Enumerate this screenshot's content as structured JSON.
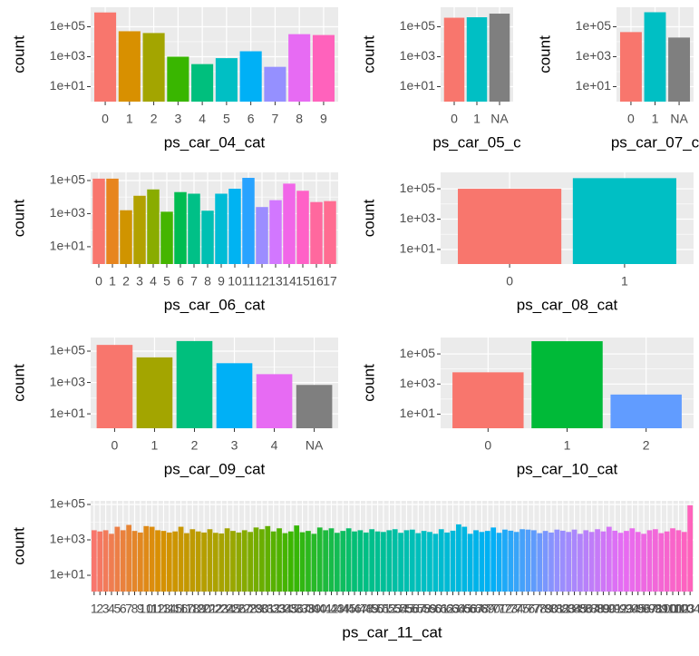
{
  "chart_data": [
    {
      "type": "bar",
      "xlabel": "ps_car_04_cat",
      "ylabel": "count",
      "log_y": true,
      "grid": true,
      "categories": [
        "0",
        "1",
        "2",
        "3",
        "4",
        "5",
        "6",
        "7",
        "8",
        "9"
      ],
      "values": [
        900000,
        50000,
        38000,
        1000,
        320,
        800,
        2300,
        210,
        32000,
        28000
      ],
      "colors": [
        "#F8766D",
        "#D89000",
        "#A3A500",
        "#39B600",
        "#00BF7D",
        "#00BFC4",
        "#00B0F6",
        "#9590FF",
        "#E76BF3",
        "#FF62BC"
      ],
      "ylim": [
        1,
        2000000
      ],
      "yticks": [
        {
          "value": 10,
          "label": "1e+01"
        },
        {
          "value": 1000,
          "label": "1e+03"
        },
        {
          "value": 100000,
          "label": "1e+05"
        }
      ]
    },
    {
      "type": "bar",
      "xlabel": "ps_car_05_c",
      "ylabel": "count",
      "log_y": true,
      "grid": true,
      "categories": [
        "0",
        "1",
        "NA"
      ],
      "values": [
        400000,
        430000,
        750000
      ],
      "colors": [
        "#F8766D",
        "#00BFC4",
        "#7F7F7F"
      ],
      "ylim": [
        1,
        2000000
      ],
      "yticks": [
        {
          "value": 10,
          "label": "1e+01"
        },
        {
          "value": 1000,
          "label": "1e+03"
        },
        {
          "value": 100000,
          "label": "1e+05"
        }
      ]
    },
    {
      "type": "bar",
      "xlabel": "ps_car_07_c",
      "ylabel": "count",
      "log_y": true,
      "grid": true,
      "categories": [
        "0",
        "1",
        "NA"
      ],
      "values": [
        44000,
        930000,
        19000
      ],
      "colors": [
        "#F8766D",
        "#00BFC4",
        "#7F7F7F"
      ],
      "ylim": [
        1,
        2000000
      ],
      "yticks": [
        {
          "value": 10,
          "label": "1e+01"
        },
        {
          "value": 1000,
          "label": "1e+03"
        },
        {
          "value": 100000,
          "label": "1e+05"
        }
      ]
    },
    {
      "type": "bar",
      "xlabel": "ps_car_06_cat",
      "ylabel": "count",
      "log_y": true,
      "grid": true,
      "categories": [
        "0",
        "1",
        "2",
        "3",
        "4",
        "5",
        "6",
        "7",
        "8",
        "9",
        "10",
        "11",
        "12",
        "13",
        "14",
        "15",
        "16",
        "17"
      ],
      "values": [
        130000,
        130000,
        1600,
        12000,
        29000,
        1300,
        20000,
        16000,
        1500,
        16000,
        32000,
        145000,
        2500,
        6500,
        65000,
        24000,
        5000,
        5700
      ],
      "colors": [
        "#F8766D",
        "#E7851E",
        "#D09400",
        "#B2A100",
        "#89AC00",
        "#45B500",
        "#00BC51",
        "#00C087",
        "#00C0B2",
        "#00BCD6",
        "#00B3F2",
        "#29A3FF",
        "#9C8DFF",
        "#D277FF",
        "#F166E8",
        "#FF61C7",
        "#FF689E",
        "#FF6C91"
      ],
      "ylim": [
        0.9,
        310000
      ],
      "yticks": [
        {
          "value": 10,
          "label": "1e+01"
        },
        {
          "value": 1000,
          "label": "1e+03"
        },
        {
          "value": 100000,
          "label": "1e+05"
        }
      ]
    },
    {
      "type": "bar",
      "xlabel": "ps_car_08_cat",
      "ylabel": "count",
      "log_y": true,
      "grid": true,
      "categories": [
        "0",
        "1"
      ],
      "values": [
        100000,
        500000
      ],
      "colors": [
        "#F8766D",
        "#00BFC4"
      ],
      "ylim": [
        1.1,
        1200000
      ],
      "yticks": [
        {
          "value": 10,
          "label": "1e+01"
        },
        {
          "value": 1000,
          "label": "1e+03"
        },
        {
          "value": 100000,
          "label": "1e+05"
        }
      ]
    },
    {
      "type": "bar",
      "xlabel": "ps_car_09_cat",
      "ylabel": "count",
      "log_y": true,
      "grid": true,
      "categories": [
        "0",
        "1",
        "2",
        "3",
        "4",
        "NA"
      ],
      "values": [
        250000,
        40000,
        440000,
        17000,
        3400,
        700
      ],
      "colors": [
        "#F8766D",
        "#A3A500",
        "#00BF7D",
        "#00B0F6",
        "#E76BF3",
        "#7F7F7F"
      ],
      "ylim": [
        1.2,
        740000
      ],
      "yticks": [
        {
          "value": 10,
          "label": "1e+01"
        },
        {
          "value": 1000,
          "label": "1e+03"
        },
        {
          "value": 100000,
          "label": "1e+05"
        }
      ]
    },
    {
      "type": "bar",
      "xlabel": "ps_car_10_cat",
      "ylabel": "count",
      "log_y": true,
      "grid": true,
      "categories": [
        "0",
        "1",
        "2"
      ],
      "values": [
        6000,
        700000,
        200
      ],
      "colors": [
        "#F8766D",
        "#00BA38",
        "#619CFF"
      ],
      "ylim": [
        1.15,
        1230000
      ],
      "yticks": [
        {
          "value": 10,
          "label": "1e+01"
        },
        {
          "value": 1000,
          "label": "1e+03"
        },
        {
          "value": 100000,
          "label": "1e+05"
        }
      ]
    },
    {
      "type": "bar",
      "xlabel": "ps_car_11_cat",
      "ylabel": "count",
      "log_y": true,
      "grid": true,
      "categories": [
        "1",
        "2",
        "3",
        "4",
        "5",
        "6",
        "7",
        "8",
        "9",
        "10",
        "11",
        "12",
        "13",
        "14",
        "15",
        "16",
        "17",
        "18",
        "19",
        "20",
        "21",
        "22",
        "23",
        "24",
        "25",
        "26",
        "27",
        "28",
        "29",
        "30",
        "31",
        "32",
        "33",
        "34",
        "35",
        "36",
        "37",
        "38",
        "39",
        "40",
        "41",
        "42",
        "43",
        "44",
        "45",
        "46",
        "47",
        "48",
        "49",
        "50",
        "51",
        "52",
        "53",
        "54",
        "55",
        "56",
        "57",
        "58",
        "59",
        "60",
        "61",
        "62",
        "63",
        "64",
        "65",
        "66",
        "67",
        "68",
        "69",
        "70",
        "71",
        "72",
        "73",
        "74",
        "75",
        "76",
        "77",
        "78",
        "79",
        "80",
        "81",
        "82",
        "83",
        "84",
        "85",
        "86",
        "87",
        "88",
        "89",
        "90",
        "91",
        "92",
        "93",
        "94",
        "95",
        "96",
        "97",
        "98",
        "99",
        "100",
        "101",
        "102",
        "103",
        "104"
      ],
      "values": [
        3500,
        3000,
        3500,
        2200,
        5500,
        3500,
        7000,
        3200,
        2600,
        6000,
        5500,
        3500,
        3200,
        2600,
        3000,
        5500,
        2400,
        4000,
        3000,
        2600,
        4000,
        2500,
        2300,
        4500,
        3200,
        2600,
        3500,
        2800,
        5000,
        4000,
        6000,
        3000,
        4500,
        2400,
        3000,
        6500,
        2700,
        3200,
        2200,
        5000,
        3500,
        4500,
        2500,
        3200,
        4500,
        3000,
        3500,
        2600,
        4000,
        3000,
        2800,
        3500,
        4000,
        2500,
        3500,
        3800,
        2400,
        3200,
        2800,
        2200,
        4000,
        2600,
        3300,
        7500,
        5500,
        2200,
        3500,
        2800,
        3200,
        5000,
        2500,
        3800,
        3300,
        2800,
        4000,
        3800,
        3500,
        2400,
        3200,
        2600,
        3800,
        3300,
        2800,
        3800,
        2200,
        3500,
        2800,
        4000,
        3000,
        5500,
        3300,
        2500,
        3200,
        4500,
        2800,
        2200,
        3500,
        4000,
        2400,
        3000,
        4500,
        3500,
        2800,
        90000
      ],
      "palette": [
        "#F8766D",
        "#D89000",
        "#A3A500",
        "#39B600",
        "#00BF7D",
        "#00BFC4",
        "#00B0F6",
        "#9590FF",
        "#E76BF3",
        "#FF62BC"
      ],
      "ylim": [
        1.2,
        160000
      ],
      "yticks": [
        {
          "value": 10,
          "label": "1e+01"
        },
        {
          "value": 1000,
          "label": "1e+03"
        },
        {
          "value": 100000,
          "label": "1e+05"
        }
      ]
    }
  ]
}
